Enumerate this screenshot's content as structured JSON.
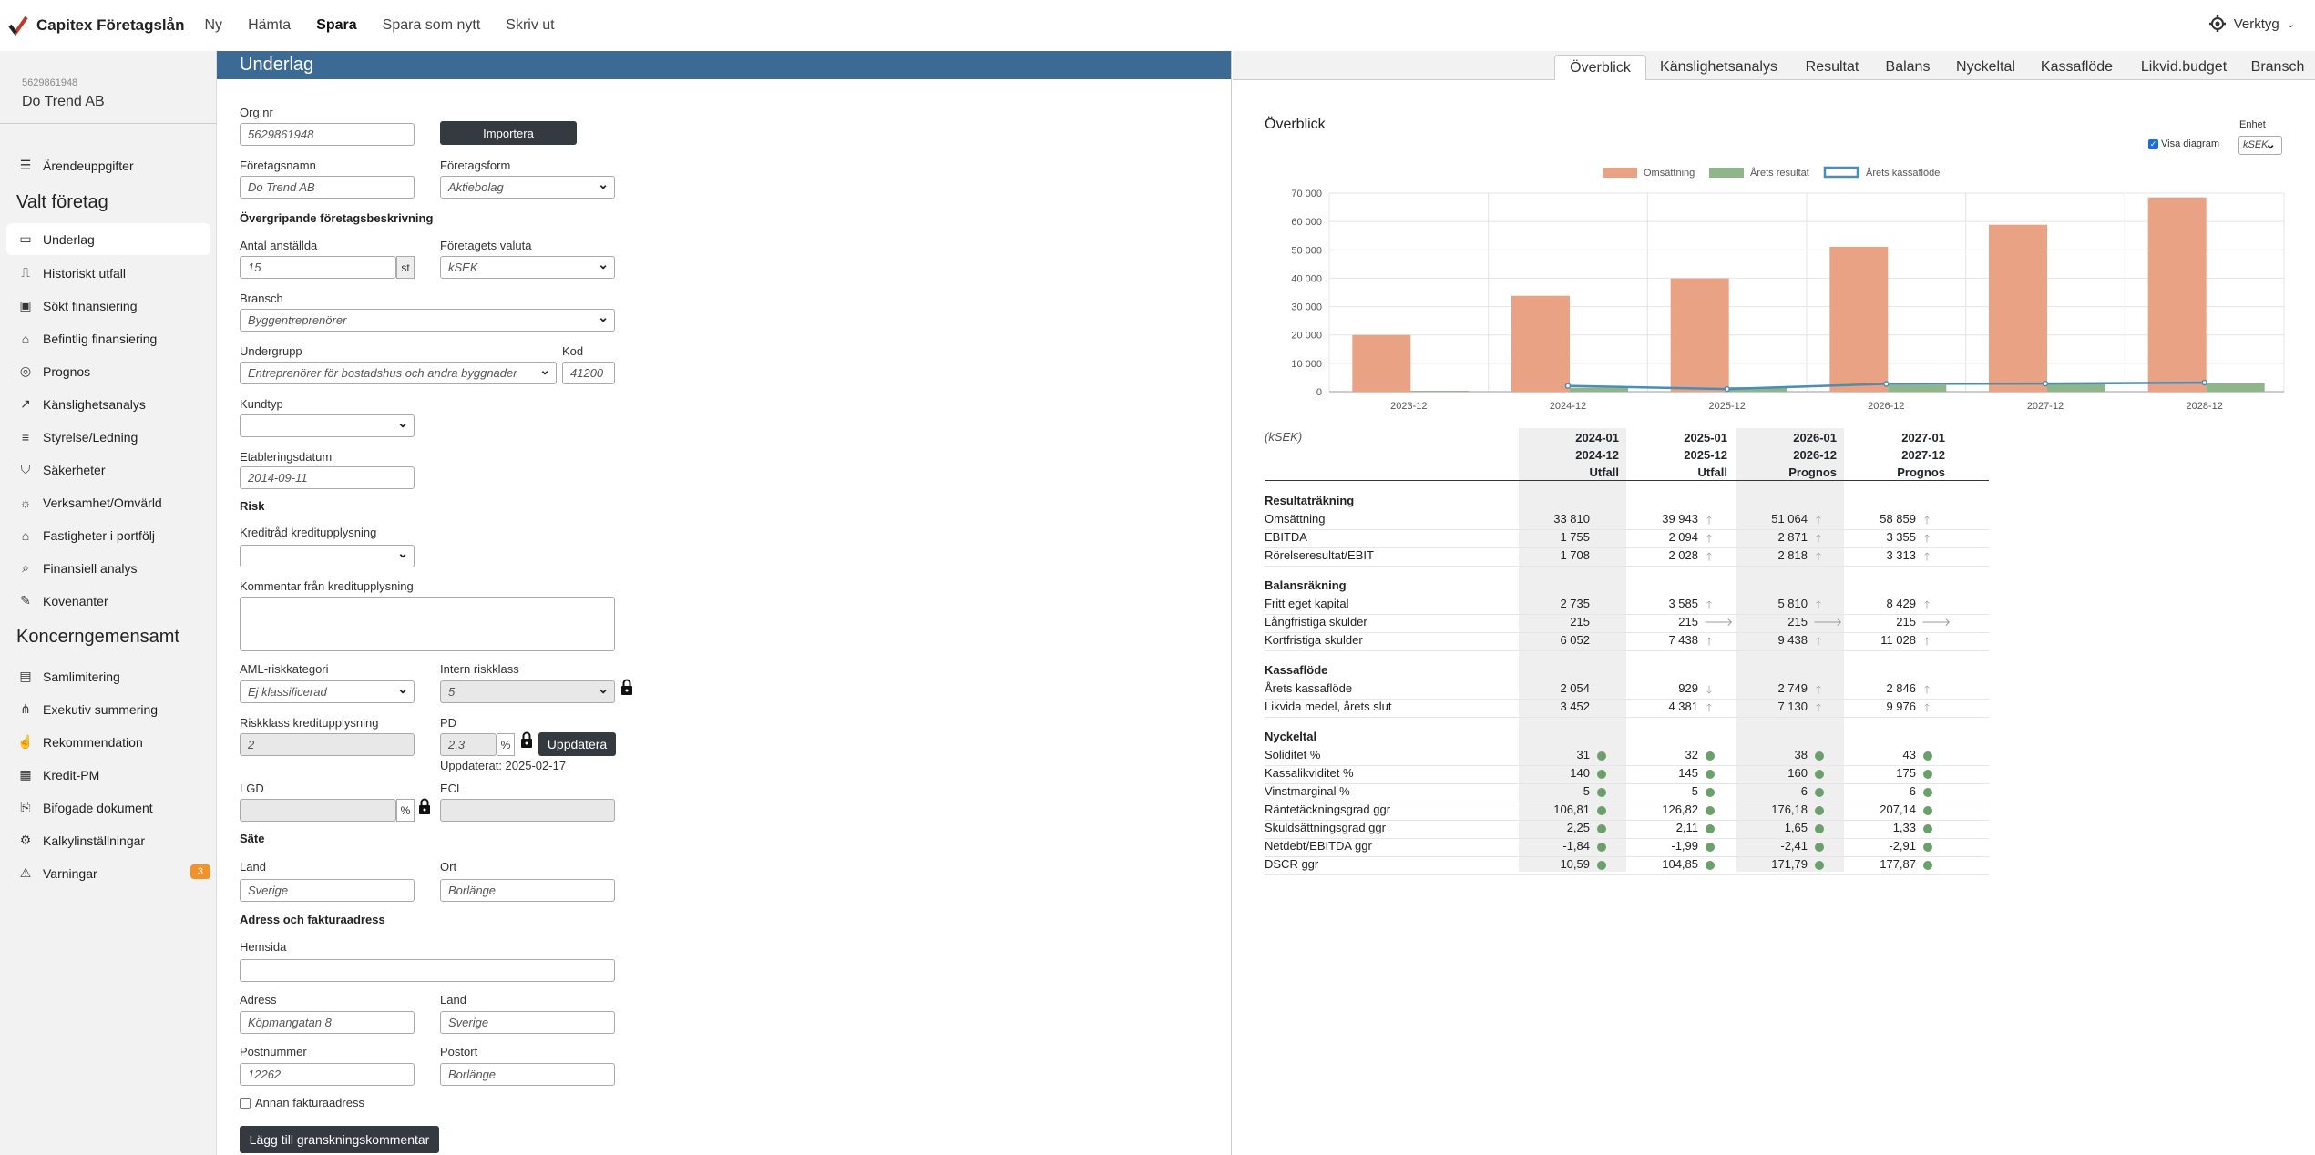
{
  "app": {
    "brand": "Capitex Företagslån",
    "nav": [
      "Ny",
      "Hämta",
      "Spara",
      "Spara som nytt",
      "Skriv ut"
    ],
    "active_nav": "Spara",
    "tools": "Verktyg"
  },
  "sidebar": {
    "org_no": "5629861948",
    "org_name": "Do Trend AB",
    "items": [
      {
        "label": "Ärendeuppgifter",
        "icon": "list-icon"
      },
      {
        "label": "Underlag",
        "icon": "inbox-icon"
      },
      {
        "label": "Historiskt utfall",
        "icon": "line-chart-icon"
      },
      {
        "label": "Sökt finansiering",
        "icon": "money-icon"
      },
      {
        "label": "Befintlig finansiering",
        "icon": "bank-icon"
      },
      {
        "label": "Prognos",
        "icon": "coins-icon"
      },
      {
        "label": "Känslighetsanalys",
        "icon": "trend-icon"
      },
      {
        "label": "Styrelse/Ledning",
        "icon": "document-icon"
      },
      {
        "label": "Säkerheter",
        "icon": "shield-icon"
      },
      {
        "label": "Verksamhet/Omvärld",
        "icon": "bulb-icon"
      },
      {
        "label": "Fastigheter i portfölj",
        "icon": "house-icon"
      },
      {
        "label": "Finansiell analys",
        "icon": "magnifier-icon"
      },
      {
        "label": "Kovenanter",
        "icon": "clipboard-icon"
      },
      {
        "label": "Samlimitering",
        "icon": "stack-icon"
      },
      {
        "label": "Exekutiv summering",
        "icon": "hierarchy-icon"
      },
      {
        "label": "Rekommendation",
        "icon": "thumb-icon"
      },
      {
        "label": "Kredit-PM",
        "icon": "pm-icon"
      },
      {
        "label": "Bifogade dokument",
        "icon": "attach-icon"
      },
      {
        "label": "Kalkylinställningar",
        "icon": "gear-icon"
      },
      {
        "label": "Varningar",
        "icon": "warning-icon"
      }
    ],
    "section_valt": "Valt företag",
    "section_koncern": "Koncerngemensamt",
    "warnings_count": "3"
  },
  "form": {
    "header": "Underlag",
    "orgnr_label": "Org.nr",
    "orgnr_value": "5629861948",
    "import_btn": "Importera",
    "company_name_label": "Företagsnamn",
    "company_name_value": "Do Trend AB",
    "company_form_label": "Företagsform",
    "company_form_value": "Aktiebolag",
    "section_overall": "Övergripande företagsbeskrivning",
    "employees_label": "Antal anställda",
    "employees_value": "15",
    "employees_unit": "st",
    "currency_label": "Företagets valuta",
    "currency_value": "kSEK",
    "industry_label": "Bransch",
    "industry_value": "Byggentreprenörer",
    "subgroup_label": "Undergrupp",
    "subgroup_value": "Entreprenörer för bostadshus och andra byggnader",
    "code_label": "Kod",
    "code_value": "41200",
    "customer_type_label": "Kundtyp",
    "founded_label": "Etableringsdatum",
    "founded_value": "2014-09-11",
    "section_risk": "Risk",
    "credit_advice_label": "Kreditråd kreditupplysning",
    "credit_comment_label": "Kommentar från kreditupplysning",
    "aml_label": "AML-riskkategori",
    "aml_value": "Ej klassificerad",
    "internal_risk_label": "Intern riskklass",
    "internal_risk_value": "5",
    "risk_class_label": "Riskklass kreditupplysning",
    "risk_class_value": "2",
    "pd_label": "PD",
    "pd_value": "2,3",
    "pd_unit": "%",
    "update_btn": "Uppdatera",
    "updated_text": "Uppdaterat: 2025-02-17",
    "lgd_label": "LGD",
    "lgd_unit": "%",
    "ecl_label": "ECL",
    "section_seat": "Säte",
    "country_label": "Land",
    "country_value": "Sverige",
    "city_label": "Ort",
    "city_value": "Borlänge",
    "section_address": "Adress och fakturaadress",
    "website_label": "Hemsida",
    "address_label": "Adress",
    "address_value": "Köpmangatan 8",
    "addr_country_label": "Land",
    "addr_country_value": "Sverige",
    "zip_label": "Postnummer",
    "zip_value": "12262",
    "postort_label": "Postort",
    "postort_value": "Borlänge",
    "other_invoice_label": "Annan fakturaadress",
    "review_btn": "Lägg till granskningskommentar"
  },
  "right": {
    "tabs": [
      "Överblick",
      "Känslighetsanalys",
      "Resultat",
      "Balans",
      "Nyckeltal",
      "Kassaflöde",
      "Likvid.budget",
      "Bransch"
    ],
    "active_tab": "Överblick",
    "title": "Överblick",
    "show_chart_label": "Visa diagram",
    "unit_label": "Enhet",
    "unit_value": "kSEK",
    "table_unit": "(kSEK)",
    "columns": [
      {
        "from": "2024-01",
        "to": "2024-12",
        "type": "Utfall"
      },
      {
        "from": "2025-01",
        "to": "2025-12",
        "type": "Utfall"
      },
      {
        "from": "2026-01",
        "to": "2026-12",
        "type": "Prognos"
      },
      {
        "from": "2027-01",
        "to": "2027-12",
        "type": "Prognos"
      }
    ],
    "sections": [
      {
        "title": "Resultaträkning",
        "rows": [
          {
            "label": "Omsättning",
            "values": [
              "33 810",
              "39 943",
              "51 064",
              "58 859"
            ],
            "ind": [
              "",
              "up",
              "up",
              "up"
            ]
          },
          {
            "label": "EBITDA",
            "values": [
              "1 755",
              "2 094",
              "2 871",
              "3 355"
            ],
            "ind": [
              "",
              "up",
              "up",
              "up"
            ]
          },
          {
            "label": "Rörelseresultat/EBIT",
            "values": [
              "1 708",
              "2 028",
              "2 818",
              "3 313"
            ],
            "ind": [
              "",
              "up",
              "up",
              "up"
            ]
          }
        ]
      },
      {
        "title": "Balansräkning",
        "rows": [
          {
            "label": "Fritt eget kapital",
            "values": [
              "2 735",
              "3 585",
              "5 810",
              "8 429"
            ],
            "ind": [
              "",
              "up",
              "up",
              "up"
            ]
          },
          {
            "label": "Långfristiga skulder",
            "values": [
              "215",
              "215",
              "215",
              "215"
            ],
            "ind": [
              "",
              "right",
              "right",
              "right"
            ]
          },
          {
            "label": "Kortfristiga skulder",
            "values": [
              "6 052",
              "7 438",
              "9 438",
              "11 028"
            ],
            "ind": [
              "",
              "up",
              "up",
              "up"
            ]
          }
        ]
      },
      {
        "title": "Kassaflöde",
        "rows": [
          {
            "label": "Årets kassaflöde",
            "values": [
              "2 054",
              "929",
              "2 749",
              "2 846"
            ],
            "ind": [
              "",
              "down",
              "up",
              "up"
            ]
          },
          {
            "label": "Likvida medel, årets slut",
            "values": [
              "3 452",
              "4 381",
              "7 130",
              "9 976"
            ],
            "ind": [
              "",
              "up",
              "up",
              "up"
            ]
          }
        ]
      },
      {
        "title": "Nyckeltal",
        "rows": [
          {
            "label": "Soliditet %",
            "values": [
              "31",
              "32",
              "38",
              "43"
            ],
            "ind": [
              "dot",
              "dot",
              "dot",
              "dot"
            ]
          },
          {
            "label": "Kassalikviditet %",
            "values": [
              "140",
              "145",
              "160",
              "175"
            ],
            "ind": [
              "dot",
              "dot",
              "dot",
              "dot"
            ]
          },
          {
            "label": "Vinstmarginal %",
            "values": [
              "5",
              "5",
              "6",
              "6"
            ],
            "ind": [
              "dot",
              "dot",
              "dot",
              "dot"
            ]
          },
          {
            "label": "Räntetäckningsgrad ggr",
            "values": [
              "106,81",
              "126,82",
              "176,18",
              "207,14"
            ],
            "ind": [
              "dot",
              "dot",
              "dot",
              "dot"
            ]
          },
          {
            "label": "Skuldsättningsgrad ggr",
            "values": [
              "2,25",
              "2,11",
              "1,65",
              "1,33"
            ],
            "ind": [
              "dot",
              "dot",
              "dot",
              "dot"
            ]
          },
          {
            "label": "Netdebt/EBITDA ggr",
            "values": [
              "-1,84",
              "-1,99",
              "-2,41",
              "-2,91"
            ],
            "ind": [
              "dot",
              "dot",
              "dot",
              "dot"
            ]
          },
          {
            "label": "DSCR ggr",
            "values": [
              "10,59",
              "104,85",
              "171,79",
              "177,87"
            ],
            "ind": [
              "dot",
              "dot",
              "dot",
              "dot"
            ]
          }
        ]
      }
    ]
  },
  "chart_data": {
    "type": "bar",
    "categories": [
      "2023-12",
      "2024-12",
      "2025-12",
      "2026-12",
      "2027-12",
      "2028-12"
    ],
    "series": [
      {
        "name": "Omsättning",
        "kind": "bar",
        "color": "#e9a283",
        "values": [
          20000,
          33810,
          39943,
          51064,
          58859,
          68500
        ]
      },
      {
        "name": "Årets resultat",
        "kind": "bar",
        "color": "#8fb58a",
        "values": [
          300,
          1400,
          1600,
          2300,
          2700,
          3000
        ]
      },
      {
        "name": "Årets kassaflöde",
        "kind": "line",
        "color": "#4a8db5",
        "values": [
          null,
          2054,
          929,
          2749,
          2846,
          3200
        ]
      }
    ],
    "yticks": [
      "0",
      "10 000",
      "20 000",
      "30 000",
      "40 000",
      "50 000",
      "60 000",
      "70 000"
    ],
    "ylim": [
      0,
      70000
    ],
    "legend_position": "top",
    "grid": true
  }
}
